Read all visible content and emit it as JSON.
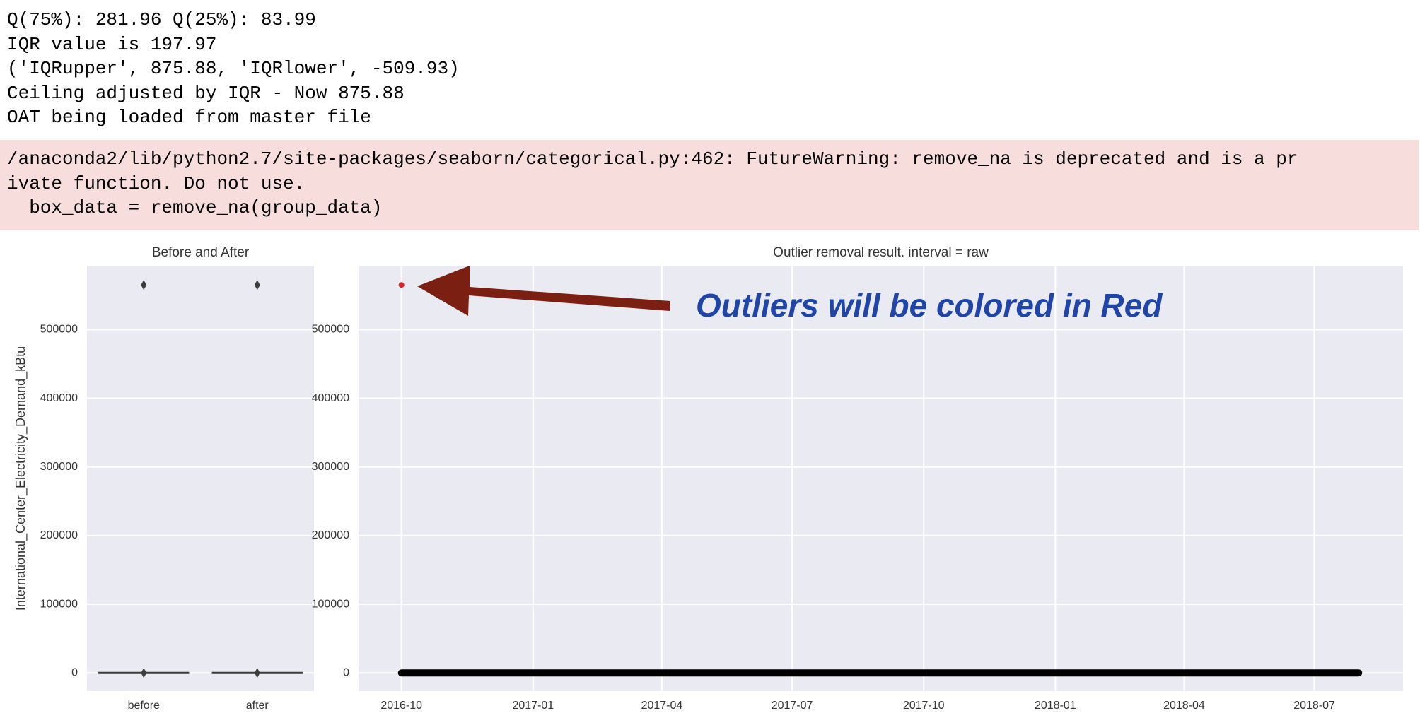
{
  "output": {
    "lines": [
      "Q(75%): 281.96 Q(25%): 83.99",
      "IQR value is 197.97",
      "('IQRupper', 875.88, 'IQRlower', -509.93)",
      "Ceiling adjusted by IQR - Now 875.88",
      "OAT being loaded from master file"
    ]
  },
  "warning": {
    "lines": [
      "/anaconda2/lib/python2.7/site-packages/seaborn/categorical.py:462: FutureWarning: remove_na is deprecated and is a pr",
      "ivate function. Do not use.",
      "  box_data = remove_na(group_data)"
    ]
  },
  "chart_data": [
    {
      "type": "box",
      "title": "Before and After",
      "y_label": "International_Center_Electricity_Demand_kBtu",
      "categories": [
        "before",
        "after"
      ],
      "medians": [
        0,
        0
      ],
      "outliers": [
        [
          565000
        ],
        [
          565000
        ]
      ],
      "color": "#3d3d3d",
      "ylim": [
        -26500,
        593000
      ],
      "yticks": [
        0,
        100000,
        200000,
        300000,
        400000,
        500000
      ],
      "grid": true
    },
    {
      "type": "line",
      "title": "Outlier removal result. interval = raw",
      "annotation": "Outliers will be colored in Red",
      "series": [
        {
          "style": "line",
          "color": "#000000",
          "x": [
            "2016-10",
            "2018-08"
          ],
          "values": [
            0,
            0
          ]
        },
        {
          "style": "point",
          "color": "#d62728",
          "x": [
            "2016-10"
          ],
          "values": [
            565000
          ]
        }
      ],
      "xlim": [
        "2016-09",
        "2018-09"
      ],
      "xticks": [
        "2016-10",
        "2017-01",
        "2017-04",
        "2017-07",
        "2017-10",
        "2018-01",
        "2018-04",
        "2018-07"
      ],
      "ylim": [
        -26500,
        593000
      ],
      "yticks": [
        0,
        100000,
        200000,
        300000,
        400000,
        500000
      ],
      "grid": true
    }
  ]
}
